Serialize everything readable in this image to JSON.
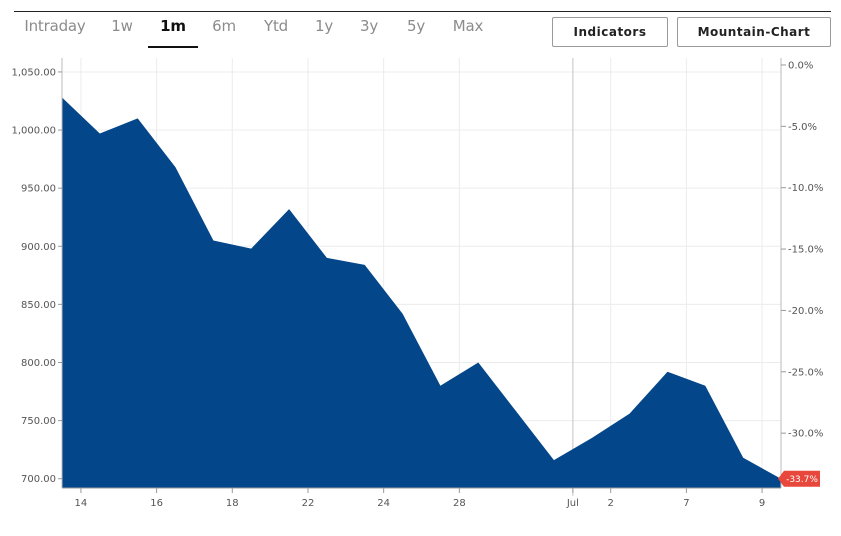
{
  "tabs": [
    {
      "label": "Intraday",
      "active": false
    },
    {
      "label": "1w",
      "active": false
    },
    {
      "label": "1m",
      "active": true
    },
    {
      "label": "6m",
      "active": false
    },
    {
      "label": "Ytd",
      "active": false
    },
    {
      "label": "1y",
      "active": false
    },
    {
      "label": "3y",
      "active": false
    },
    {
      "label": "5y",
      "active": false
    },
    {
      "label": "Max",
      "active": false
    }
  ],
  "buttons": {
    "indicators": "Indicators",
    "mountain_chart": "Mountain-Chart"
  },
  "colors": {
    "area_fill": "#04468a",
    "badge": "#e8473b",
    "grid": "#ececec"
  },
  "chart_data": {
    "type": "area",
    "x": [
      0,
      1,
      2,
      3,
      4,
      5,
      6,
      7,
      8,
      9,
      10,
      11,
      12,
      13,
      14,
      15,
      16,
      17,
      18,
      19
    ],
    "values": [
      1028,
      997,
      1010,
      968,
      905,
      898,
      932,
      890,
      884,
      842,
      780,
      800,
      758,
      716,
      735,
      756,
      792,
      780,
      718,
      700
    ],
    "xtick_labels": [
      {
        "x": 0.5,
        "label": "14"
      },
      {
        "x": 2.5,
        "label": "16"
      },
      {
        "x": 4.5,
        "label": "18"
      },
      {
        "x": 6.5,
        "label": "22"
      },
      {
        "x": 8.5,
        "label": "24"
      },
      {
        "x": 10.5,
        "label": "28"
      },
      {
        "x": 13.5,
        "label": "Jul"
      },
      {
        "x": 14.5,
        "label": "2"
      },
      {
        "x": 16.5,
        "label": "7"
      },
      {
        "x": 18.5,
        "label": "9"
      }
    ],
    "y_ticks": [
      700,
      750,
      800,
      850,
      900,
      950,
      1000,
      1050
    ],
    "y_tick_labels": [
      "700.00",
      "750.00",
      "800.00",
      "850.00",
      "900.00",
      "950.00",
      "1,000.00",
      "1,050.00"
    ],
    "ylim": [
      692,
      1062
    ],
    "y2_ticks": [
      0,
      -5,
      -10,
      -15,
      -20,
      -25,
      -30
    ],
    "y2_tick_labels": [
      "0.0%",
      "-5.0%",
      "-10.0%",
      "-15.0%",
      "-20.0%",
      "-25.0%",
      "-30.0%"
    ],
    "y2_base": 1056,
    "month_divider_x": 13.5,
    "last_change_label": "-33.7%",
    "grid": true
  }
}
